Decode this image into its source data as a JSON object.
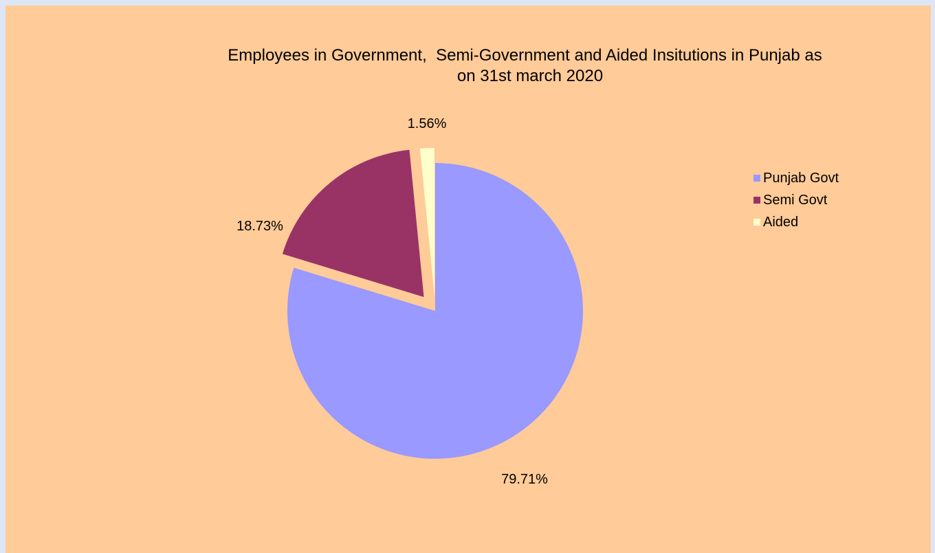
{
  "chart_data": {
    "type": "pie",
    "title_line1": "Employees in Government,  Semi-Government and Aided Insitutions in Punjab as",
    "title_line2": "on 31st march 2020",
    "slices": [
      {
        "label": "Punjab Govt",
        "value": 79.71,
        "data_label": "79.71%",
        "color": "#9999ff"
      },
      {
        "label": "Semi Govt",
        "value": 18.73,
        "data_label": "18.73%",
        "color": "#993366"
      },
      {
        "label": "Aided",
        "value": 1.56,
        "data_label": "1.56%",
        "color": "#ffffcc"
      }
    ],
    "legend_position": "right",
    "exploded": [
      "Semi Govt",
      "Aided"
    ],
    "background_color": "#ffcb99"
  }
}
